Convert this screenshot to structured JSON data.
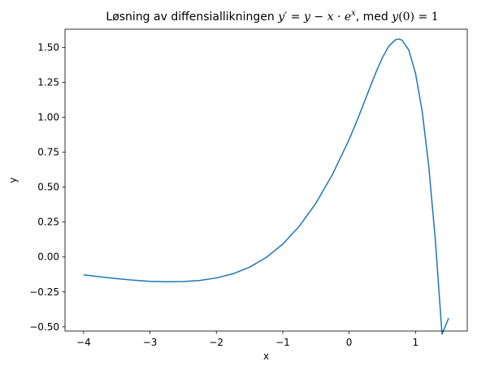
{
  "chart_data": {
    "type": "line",
    "title": {
      "prefix": "Løsning av diffensiallikningen ",
      "equation": {
        "y": "y",
        "prime": "′",
        "eq": " = ",
        "y2": "y",
        "minus": " − ",
        "x": "x",
        "dot": " · ",
        "e": "e",
        "exp": "x"
      },
      "middle": ", med ",
      "condition": {
        "y": "y",
        "open": "(",
        "zero": "0",
        "close": ")",
        "eq": " = ",
        "one": "1"
      }
    },
    "xlabel": "x",
    "ylabel": "y",
    "xlim": [
      -4.28,
      1.78
    ],
    "ylim": [
      -0.53,
      1.63
    ],
    "xticks": [
      -4,
      -3,
      -2,
      -1,
      0,
      1
    ],
    "xtick_labels": [
      "−4",
      "−3",
      "−2",
      "−1",
      "0",
      "1"
    ],
    "yticks": [
      -0.5,
      -0.25,
      0,
      0.25,
      0.5,
      0.75,
      1.0,
      1.25,
      1.5
    ],
    "ytick_labels": [
      "−0.50",
      "−0.25",
      "0.00",
      "0.25",
      "0.50",
      "0.75",
      "1.00",
      "1.25",
      "1.50"
    ],
    "grid": false,
    "series": [
      {
        "color": "#1f77b4",
        "x": [
          -4.0,
          -3.75,
          -3.5,
          -3.25,
          -3.0,
          -2.75,
          -2.5,
          -2.25,
          -2.0,
          -1.75,
          -1.5,
          -1.25,
          -1.0,
          -0.75,
          -0.5,
          -0.25,
          0.0,
          0.1,
          0.2,
          0.3,
          0.4,
          0.5,
          0.6,
          0.7,
          0.75,
          0.8,
          0.9,
          1.0,
          1.1,
          1.2,
          1.3,
          1.4,
          1.5
        ],
        "y": [
          -0.128,
          -0.142,
          -0.155,
          -0.166,
          -0.174,
          -0.177,
          -0.176,
          -0.168,
          -0.15,
          -0.12,
          -0.073,
          -0.004,
          0.092,
          0.22,
          0.385,
          0.591,
          0.84,
          0.953,
          1.073,
          1.196,
          1.316,
          1.425,
          1.51,
          1.555,
          1.56,
          1.551,
          1.48,
          1.316,
          1.046,
          0.651,
          0.118,
          -0.552,
          -0.437
        ]
      }
    ]
  }
}
